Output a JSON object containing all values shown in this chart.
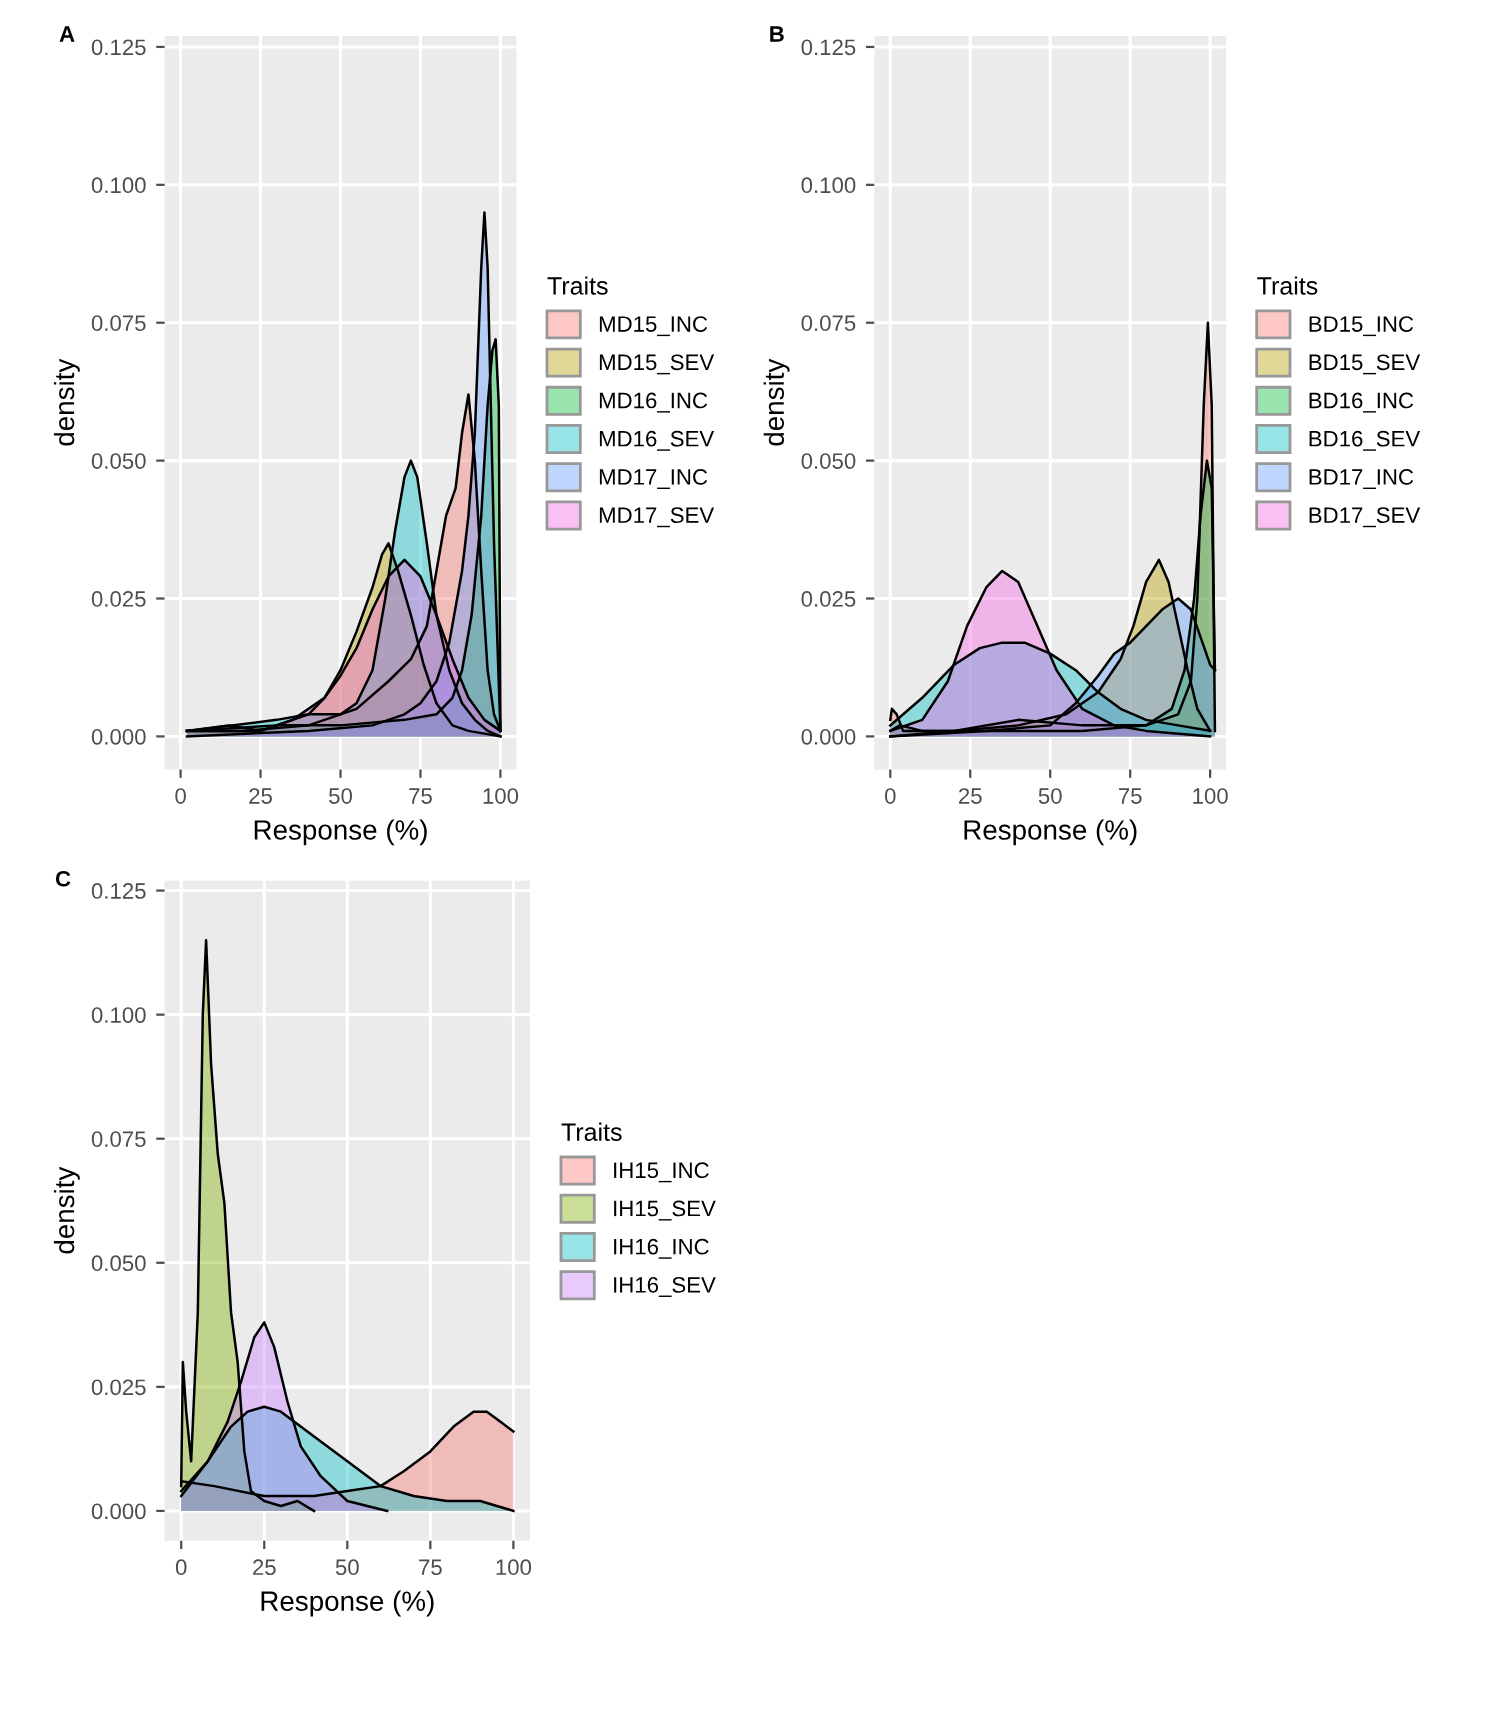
{
  "chart_data": [
    {
      "type": "area",
      "title": "A",
      "xlabel": "Response (%)",
      "ylabel": "density",
      "legend_title": "Traits",
      "legend": "right",
      "grid": true,
      "xlim": [
        -5,
        105
      ],
      "ylim": [
        -0.006,
        0.127
      ],
      "xticks": [
        0,
        25,
        50,
        75,
        100
      ],
      "yticks": [
        {
          "value": 0,
          "label": "0.000"
        },
        {
          "value": 0.025,
          "label": "0.025"
        },
        {
          "value": 0.05,
          "label": "0.050"
        },
        {
          "value": 0.075,
          "label": "0.075"
        },
        {
          "value": 0.1,
          "label": "0.100"
        },
        {
          "value": 0.125,
          "label": "0.125"
        }
      ],
      "series": [
        {
          "name": "MD15_INC",
          "color": "#f8766d",
          "x": [
            2,
            20,
            40,
            55,
            65,
            72,
            77,
            80,
            83,
            86,
            88,
            90,
            92,
            94,
            96,
            98,
            100
          ],
          "values": [
            0.001,
            0.001,
            0.002,
            0.005,
            0.01,
            0.014,
            0.02,
            0.03,
            0.04,
            0.045,
            0.055,
            0.062,
            0.05,
            0.03,
            0.012,
            0.004,
            0.001
          ]
        },
        {
          "name": "MD15_SEV",
          "color": "#b79f00",
          "x": [
            2,
            15,
            25,
            35,
            40,
            45,
            50,
            55,
            60,
            63,
            65,
            68,
            72,
            76,
            80,
            85,
            90,
            100
          ],
          "values": [
            0.001,
            0.001,
            0.001,
            0.003,
            0.004,
            0.007,
            0.012,
            0.019,
            0.027,
            0.033,
            0.035,
            0.03,
            0.022,
            0.013,
            0.006,
            0.002,
            0.001,
            0
          ]
        },
        {
          "name": "MD16_INC",
          "color": "#00ba38",
          "x": [
            2,
            30,
            50,
            70,
            80,
            85,
            88,
            91,
            94,
            96,
            97.5,
            98.5,
            99.5,
            100
          ],
          "values": [
            0.001,
            0.002,
            0.002,
            0.003,
            0.004,
            0.007,
            0.012,
            0.022,
            0.04,
            0.06,
            0.07,
            0.072,
            0.06,
            0.001
          ]
        },
        {
          "name": "MD16_SEV",
          "color": "#00bfc4",
          "x": [
            2,
            30,
            40,
            50,
            55,
            60,
            64,
            67,
            70,
            72,
            74,
            77,
            80,
            84,
            88,
            92,
            96,
            100
          ],
          "values": [
            0.001,
            0.003,
            0.004,
            0.004,
            0.006,
            0.012,
            0.025,
            0.037,
            0.047,
            0.05,
            0.047,
            0.035,
            0.022,
            0.012,
            0.006,
            0.003,
            0.001,
            0
          ]
        },
        {
          "name": "MD17_INC",
          "color": "#619cff",
          "x": [
            2,
            40,
            60,
            70,
            75,
            80,
            84,
            88,
            90,
            92,
            94,
            95,
            96,
            97,
            98,
            100
          ],
          "values": [
            0,
            0.001,
            0.002,
            0.004,
            0.006,
            0.01,
            0.017,
            0.03,
            0.04,
            0.055,
            0.085,
            0.095,
            0.085,
            0.06,
            0.035,
            0.001
          ]
        },
        {
          "name": "MD17_SEV",
          "color": "#f564e3",
          "x": [
            2,
            15,
            25,
            35,
            45,
            50,
            55,
            60,
            65,
            70,
            75,
            80,
            85,
            90,
            95,
            100
          ],
          "values": [
            0.001,
            0.002,
            0.001,
            0.003,
            0.007,
            0.011,
            0.016,
            0.023,
            0.029,
            0.032,
            0.029,
            0.022,
            0.014,
            0.007,
            0.003,
            0.001
          ]
        }
      ]
    },
    {
      "type": "area",
      "title": "B",
      "xlabel": "Response (%)",
      "ylabel": "density",
      "legend_title": "Traits",
      "legend": "right",
      "grid": true,
      "xlim": [
        -5,
        105
      ],
      "ylim": [
        -0.006,
        0.127
      ],
      "xticks": [
        0,
        25,
        50,
        75,
        100
      ],
      "yticks": [
        {
          "value": 0,
          "label": "0.000"
        },
        {
          "value": 0.025,
          "label": "0.025"
        },
        {
          "value": 0.05,
          "label": "0.050"
        },
        {
          "value": 0.075,
          "label": "0.075"
        },
        {
          "value": 0.1,
          "label": "0.100"
        },
        {
          "value": 0.125,
          "label": "0.125"
        }
      ],
      "series": [
        {
          "name": "BD15_INC",
          "color": "#f8766d",
          "x": [
            0,
            0.5,
            2,
            4,
            20,
            40,
            60,
            80,
            90,
            94,
            96,
            98,
            99.3,
            100.5,
            101.5
          ],
          "values": [
            0.003,
            0.005,
            0.004,
            0.001,
            0.001,
            0.003,
            0.002,
            0.002,
            0.004,
            0.01,
            0.025,
            0.06,
            0.075,
            0.06,
            0.001
          ]
        },
        {
          "name": "BD15_SEV",
          "color": "#b79f00",
          "x": [
            0,
            20,
            40,
            55,
            65,
            72,
            76,
            80,
            84,
            87,
            90,
            93,
            96,
            100
          ],
          "values": [
            0,
            0.001,
            0.002,
            0.004,
            0.008,
            0.014,
            0.02,
            0.028,
            0.032,
            0.028,
            0.02,
            0.012,
            0.005,
            0.001
          ]
        },
        {
          "name": "BD16_INC",
          "color": "#00ba38",
          "x": [
            0,
            3,
            10,
            30,
            60,
            80,
            88,
            92,
            95,
            97,
            99,
            100.5,
            101.5
          ],
          "values": [
            0.001,
            0.002,
            0.001,
            0.001,
            0.001,
            0.002,
            0.005,
            0.012,
            0.025,
            0.04,
            0.05,
            0.045,
            0.012
          ]
        },
        {
          "name": "BD16_SEV",
          "color": "#00bfc4",
          "x": [
            0,
            10,
            20,
            28,
            35,
            42,
            50,
            58,
            65,
            72,
            80,
            90,
            100
          ],
          "values": [
            0.002,
            0.007,
            0.013,
            0.016,
            0.017,
            0.017,
            0.015,
            0.012,
            0.008,
            0.005,
            0.003,
            0.002,
            0.001
          ]
        },
        {
          "name": "BD17_INC",
          "color": "#619cff",
          "x": [
            0,
            30,
            50,
            58,
            65,
            70,
            75,
            80,
            85,
            90,
            94,
            97,
            100,
            101.5
          ],
          "values": [
            0,
            0.001,
            0.002,
            0.006,
            0.011,
            0.015,
            0.017,
            0.02,
            0.023,
            0.025,
            0.023,
            0.018,
            0.013,
            0.012
          ]
        },
        {
          "name": "BD17_SEV",
          "color": "#f564e3",
          "x": [
            0,
            10,
            18,
            24,
            30,
            35,
            40,
            46,
            52,
            60,
            70,
            80,
            100
          ],
          "values": [
            0.001,
            0.003,
            0.01,
            0.02,
            0.027,
            0.03,
            0.028,
            0.02,
            0.012,
            0.005,
            0.002,
            0.001,
            0
          ]
        }
      ]
    },
    {
      "type": "area",
      "title": "C",
      "xlabel": "Response (%)",
      "ylabel": "density",
      "legend_title": "Traits",
      "legend": "right",
      "grid": true,
      "xlim": [
        -5,
        105
      ],
      "ylim": [
        -0.006,
        0.127
      ],
      "xticks": [
        0,
        25,
        50,
        75,
        100
      ],
      "yticks": [
        {
          "value": 0,
          "label": "0.000"
        },
        {
          "value": 0.025,
          "label": "0.025"
        },
        {
          "value": 0.05,
          "label": "0.050"
        },
        {
          "value": 0.075,
          "label": "0.075"
        },
        {
          "value": 0.1,
          "label": "0.100"
        },
        {
          "value": 0.125,
          "label": "0.125"
        }
      ],
      "series": [
        {
          "name": "IH15_INC",
          "color": "#f8766d",
          "x": [
            0,
            10,
            25,
            40,
            50,
            60,
            67,
            75,
            82,
            88,
            92,
            96,
            100
          ],
          "values": [
            0.006,
            0.005,
            0.003,
            0.003,
            0.004,
            0.005,
            0.008,
            0.012,
            0.017,
            0.02,
            0.02,
            0.018,
            0.016
          ]
        },
        {
          "name": "IH15_SEV",
          "color": "#7cae00",
          "x": [
            0,
            0.5,
            1.5,
            3,
            5,
            6.5,
            7.5,
            9,
            11,
            13,
            15,
            17,
            19,
            21,
            25,
            30,
            35,
            40
          ],
          "values": [
            0.005,
            0.03,
            0.02,
            0.01,
            0.04,
            0.1,
            0.115,
            0.09,
            0.072,
            0.062,
            0.04,
            0.03,
            0.012,
            0.004,
            0.002,
            0.001,
            0.002,
            0
          ]
        },
        {
          "name": "IH16_INC",
          "color": "#00bfc4",
          "x": [
            0,
            8,
            15,
            20,
            25,
            30,
            40,
            50,
            60,
            70,
            80,
            90,
            100
          ],
          "values": [
            0.004,
            0.01,
            0.017,
            0.02,
            0.021,
            0.02,
            0.015,
            0.01,
            0.005,
            0.003,
            0.002,
            0.002,
            0
          ]
        },
        {
          "name": "IH16_SEV",
          "color": "#c77cff",
          "x": [
            0,
            8,
            14,
            18,
            22,
            25,
            28,
            32,
            36,
            42,
            50,
            56,
            62
          ],
          "values": [
            0.003,
            0.01,
            0.018,
            0.026,
            0.035,
            0.038,
            0.033,
            0.022,
            0.013,
            0.007,
            0.002,
            0.001,
            0
          ]
        }
      ]
    }
  ]
}
